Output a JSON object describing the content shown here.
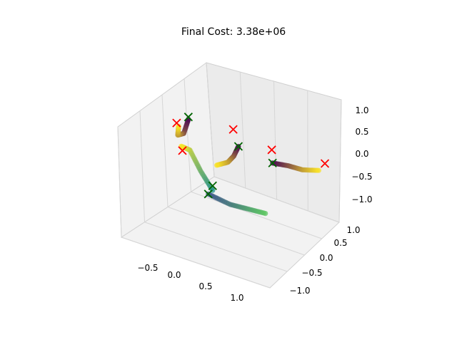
{
  "chart_data": {
    "type": "scatter3d",
    "title": "Final Cost: 3.38e+06",
    "xlabel": "",
    "ylabel": "",
    "zlabel": "",
    "x_ticks": [
      "−0.5",
      "0.0",
      "0.5",
      "1.0"
    ],
    "y_ticks": [
      "−1.0",
      "−0.5",
      "0.0",
      "0.5",
      "1.0"
    ],
    "z_ticks": [
      "−1.0",
      "−0.5",
      "0.0",
      "0.5",
      "1.0"
    ],
    "xlim": [
      -0.9,
      1.3
    ],
    "ylim": [
      -1.3,
      1.2
    ],
    "zlim": [
      -1.25,
      1.25
    ],
    "colormap": "viridis",
    "start_marker": {
      "symbol": "x",
      "color": "#006400"
    },
    "end_marker": {
      "symbol": "x",
      "color": "#ff0000"
    },
    "trajectories": [
      {
        "color_from": "#440154",
        "color_to": "#fde725",
        "points": [
          [
            -0.4,
            -0.1,
            0.9
          ],
          [
            -0.55,
            0.1,
            0.4
          ],
          [
            -0.7,
            0.25,
            0.2
          ],
          [
            -0.75,
            0.4,
            0.3
          ]
        ],
        "start": [
          -0.4,
          -0.1,
          0.95
        ],
        "end": [
          -0.8,
          0.45,
          0.3
        ]
      },
      {
        "color_from": "#440154",
        "color_to": "#fde725",
        "points": [
          [
            0.3,
            0.0,
            0.6
          ],
          [
            0.15,
            0.2,
            0.2
          ],
          [
            0.0,
            0.35,
            -0.1
          ],
          [
            -0.2,
            0.4,
            -0.3
          ]
        ],
        "start": [
          0.3,
          0.0,
          0.6
        ],
        "end": [
          0.1,
          0.3,
          0.7
        ]
      },
      {
        "color_from": "#3b528b",
        "color_to": "#5ec962",
        "points": [
          [
            0.1,
            -0.6,
            -0.2
          ],
          [
            0.3,
            -0.3,
            -0.5
          ],
          [
            0.45,
            0.0,
            -0.7
          ],
          [
            0.6,
            0.3,
            -0.9
          ]
        ],
        "start": [
          0.1,
          -0.6,
          -0.2
        ],
        "end": [
          0.65,
          0.35,
          0.5
        ]
      },
      {
        "color_from": "#440154",
        "color_to": "#fde725",
        "points": [
          [
            0.6,
            0.5,
            0.1
          ],
          [
            0.75,
            0.7,
            0.0
          ],
          [
            0.9,
            0.85,
            -0.1
          ],
          [
            1.1,
            1.0,
            -0.1
          ]
        ],
        "start": [
          0.6,
          0.5,
          0.1
        ],
        "end": [
          1.15,
          1.05,
          0.05
        ]
      },
      {
        "color_from": "#21918c",
        "color_to": "#fde725",
        "points": [
          [
            0.0,
            -0.2,
            -0.4
          ],
          [
            -0.3,
            0.1,
            -0.3
          ],
          [
            -0.5,
            0.2,
            0.0
          ],
          [
            -0.6,
            0.1,
            0.1
          ]
        ],
        "start": [
          0.0,
          -0.2,
          -0.3
        ],
        "end": [
          -0.55,
          0.05,
          0.05
        ]
      }
    ]
  }
}
